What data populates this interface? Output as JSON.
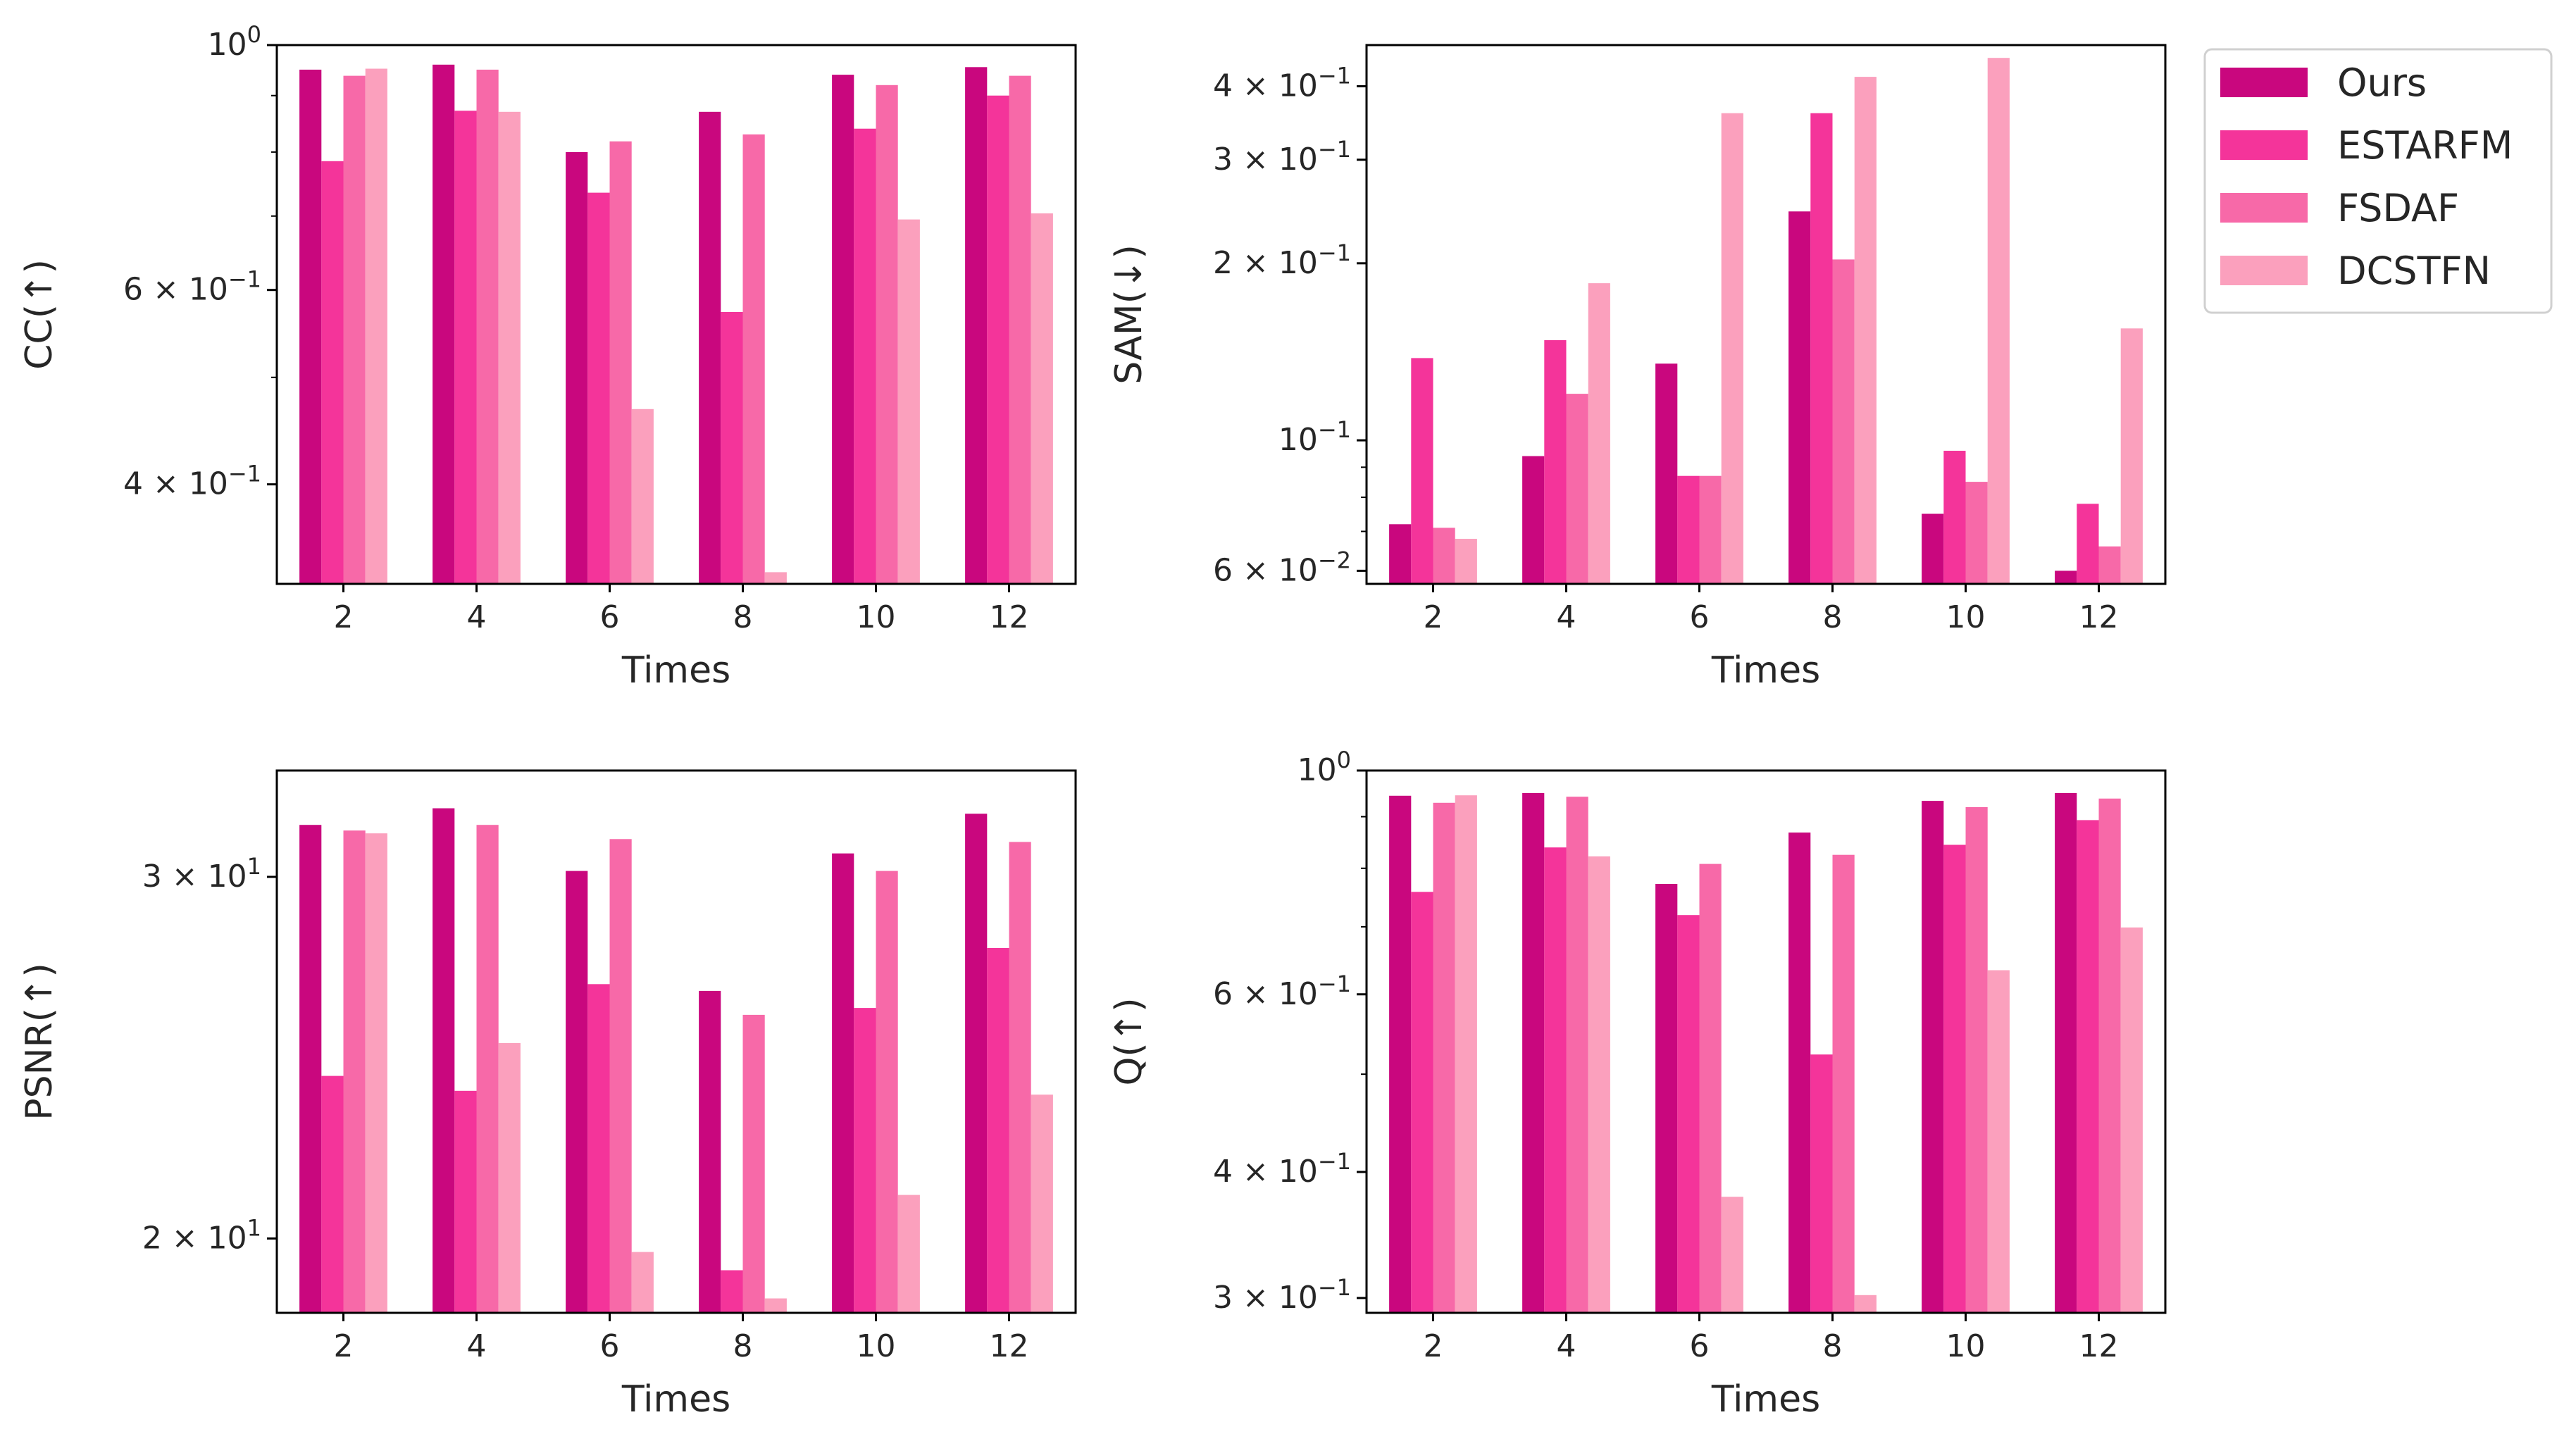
{
  "colors": {
    "Ours": "#c9077e",
    "ESTARFM": "#f4349a",
    "FSDAF": "#f769a8",
    "DCSTFN": "#fba0bd"
  },
  "legend": {
    "entries": [
      "Ours",
      "ESTARFM",
      "FSDAF",
      "DCSTFN"
    ],
    "placement": "top-right outside"
  },
  "chart_data": [
    {
      "id": "cc",
      "type": "bar",
      "yscale": "log",
      "ylabel": "CC(↑)",
      "xlabel": "Times",
      "categories": [
        2,
        4,
        6,
        8,
        10,
        12
      ],
      "ylim": [
        0.325,
        1.0
      ],
      "yticks": [
        {
          "value": 1.0,
          "label": "10",
          "exp": "0"
        },
        {
          "value": 0.6,
          "label": "6 × 10",
          "exp": "−1"
        },
        {
          "value": 0.4,
          "label": "4 × 10",
          "exp": "−1"
        }
      ],
      "series": [
        {
          "name": "Ours",
          "values": [
            0.95,
            0.96,
            0.8,
            0.87,
            0.94,
            0.955
          ]
        },
        {
          "name": "ESTARFM",
          "values": [
            0.785,
            0.872,
            0.735,
            0.573,
            0.84,
            0.9
          ]
        },
        {
          "name": "FSDAF",
          "values": [
            0.938,
            0.95,
            0.818,
            0.83,
            0.92,
            0.938
          ]
        },
        {
          "name": "DCSTFN",
          "values": [
            0.952,
            0.87,
            0.468,
            0.333,
            0.695,
            0.704
          ]
        }
      ]
    },
    {
      "id": "sam",
      "type": "bar",
      "yscale": "log",
      "ylabel": "SAM(↓)",
      "xlabel": "Times",
      "categories": [
        2,
        4,
        6,
        8,
        10,
        12
      ],
      "ylim": [
        0.057,
        0.47
      ],
      "yticks": [
        {
          "value": 0.4,
          "label": "4 × 10",
          "exp": "−1"
        },
        {
          "value": 0.3,
          "label": "3 × 10",
          "exp": "−1"
        },
        {
          "value": 0.2,
          "label": "2 × 10",
          "exp": "−1"
        },
        {
          "value": 0.1,
          "label": "10",
          "exp": "−1"
        },
        {
          "value": 0.06,
          "label": "6 × 10",
          "exp": "−2"
        }
      ],
      "series": [
        {
          "name": "Ours",
          "values": [
            0.072,
            0.094,
            0.135,
            0.245,
            0.075,
            0.06
          ]
        },
        {
          "name": "ESTARFM",
          "values": [
            0.138,
            0.148,
            0.087,
            0.36,
            0.096,
            0.078
          ]
        },
        {
          "name": "FSDAF",
          "values": [
            0.071,
            0.12,
            0.087,
            0.203,
            0.085,
            0.066
          ]
        },
        {
          "name": "DCSTFN",
          "values": [
            0.068,
            0.185,
            0.36,
            0.415,
            0.447,
            0.155
          ]
        }
      ]
    },
    {
      "id": "psnr",
      "type": "bar",
      "yscale": "log",
      "ylabel": "PSNR(↑)",
      "xlabel": "Times",
      "categories": [
        2,
        4,
        6,
        8,
        10,
        12
      ],
      "ylim": [
        18.4,
        33.8
      ],
      "yticks": [
        {
          "value": 30,
          "label": "3 × 10",
          "exp": "1"
        },
        {
          "value": 20,
          "label": "2 × 10",
          "exp": "1"
        }
      ],
      "series": [
        {
          "name": "Ours",
          "values": [
            31.8,
            32.4,
            30.2,
            26.4,
            30.8,
            32.2
          ]
        },
        {
          "name": "ESTARFM",
          "values": [
            24.0,
            23.6,
            26.6,
            19.3,
            25.9,
            27.7
          ]
        },
        {
          "name": "FSDAF",
          "values": [
            31.6,
            31.8,
            31.3,
            25.7,
            30.2,
            31.2
          ]
        },
        {
          "name": "DCSTFN",
          "values": [
            31.5,
            24.9,
            19.7,
            18.7,
            21.0,
            23.5
          ]
        }
      ]
    },
    {
      "id": "q",
      "type": "bar",
      "yscale": "log",
      "ylabel": "Q(↑)",
      "xlabel": "Times",
      "categories": [
        2,
        4,
        6,
        8,
        10,
        12
      ],
      "ylim": [
        0.29,
        1.0
      ],
      "yticks": [
        {
          "value": 1.0,
          "label": "10",
          "exp": "0"
        },
        {
          "value": 0.6,
          "label": "6 × 10",
          "exp": "−1"
        },
        {
          "value": 0.4,
          "label": "4 × 10",
          "exp": "−1"
        },
        {
          "value": 0.3,
          "label": "3 × 10",
          "exp": "−1"
        }
      ],
      "series": [
        {
          "name": "Ours",
          "values": [
            0.944,
            0.95,
            0.772,
            0.868,
            0.933,
            0.95
          ]
        },
        {
          "name": "ESTARFM",
          "values": [
            0.758,
            0.839,
            0.719,
            0.523,
            0.844,
            0.893
          ]
        },
        {
          "name": "FSDAF",
          "values": [
            0.929,
            0.942,
            0.808,
            0.825,
            0.92,
            0.938
          ]
        },
        {
          "name": "DCSTFN",
          "values": [
            0.945,
            0.822,
            0.378,
            0.302,
            0.634,
            0.699
          ]
        }
      ]
    }
  ]
}
